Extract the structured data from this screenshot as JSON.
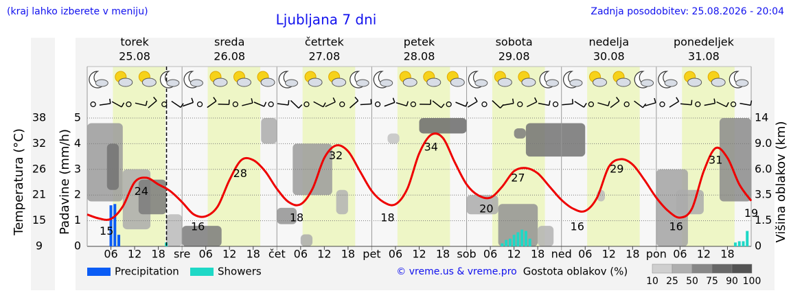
{
  "header": {
    "hint": "(kraj lahko izberete v meniju)",
    "updated": "Zadnja posodobitev: 25.08.2026 - 20:04"
  },
  "chart_data": {
    "type": "meteogram",
    "title": "Ljubljana 7 dni",
    "days": [
      {
        "name": "torek",
        "date": "25.08",
        "color": "#000000"
      },
      {
        "name": "sreda",
        "date": "26.08",
        "color": "#000000"
      },
      {
        "name": "četrtek",
        "date": "27.08",
        "color": "#000000"
      },
      {
        "name": "petek",
        "date": "28.08",
        "color": "#000000"
      },
      {
        "name": "sobota",
        "date": "29.08",
        "color": "#dd0000"
      },
      {
        "name": "nedelja",
        "date": "30.08",
        "color": "#dd0000"
      },
      {
        "name": "ponedeljek",
        "date": "31.08",
        "color": "#000000"
      }
    ],
    "xlim": [
      0,
      168
    ],
    "xticks": [
      {
        "value": 6,
        "label": "06"
      },
      12,
      18,
      {
        "value": 24,
        "label": "sre"
      },
      {
        "value": 30,
        "label": "06"
      },
      {
        "value": 36,
        "label": "12"
      },
      {
        "value": 42,
        "label": "18"
      },
      {
        "value": 48,
        "label": "čet"
      },
      {
        "value": 54,
        "label": "06"
      },
      {
        "value": 60,
        "label": "12"
      },
      {
        "value": 66,
        "label": "18"
      },
      {
        "value": 72,
        "label": "pet"
      },
      {
        "value": 78,
        "label": "06"
      },
      {
        "value": 84,
        "label": "12"
      },
      {
        "value": 90,
        "label": "18"
      },
      {
        "value": 96,
        "label": "sob"
      },
      {
        "value": 102,
        "label": "06"
      },
      {
        "value": 108,
        "label": "12"
      },
      {
        "value": 114,
        "label": "18"
      },
      {
        "value": 120,
        "label": "ned"
      },
      {
        "value": 126,
        "label": "06"
      },
      {
        "value": 132,
        "label": "12"
      },
      {
        "value": 138,
        "label": "18"
      },
      {
        "value": 144,
        "label": "pon"
      },
      {
        "value": 150,
        "label": "06"
      },
      {
        "value": 156,
        "label": "12"
      },
      {
        "value": 162,
        "label": "18"
      }
    ],
    "daylight_hours": [
      6.5,
      19.8
    ],
    "now_x": 20.07,
    "ylabel": "Padavine (mm/h)",
    "ylim": [
      0,
      5
    ],
    "yticks": [
      0,
      1,
      2,
      3,
      4,
      5
    ],
    "grid": true,
    "temperature": {
      "label": "Temperatura (°C)",
      "color": "#ee0000",
      "ylim": [
        9,
        38
      ],
      "ticks": [
        9,
        {
          "value": 14.8,
          "label": "15"
        },
        {
          "value": 20.6,
          "label": "21"
        },
        {
          "value": 26.4,
          "label": "26"
        },
        {
          "value": 32.2,
          "label": "32"
        },
        38
      ],
      "x": [
        0,
        3,
        6,
        9,
        12,
        15,
        18,
        21,
        24,
        27,
        30,
        33,
        36,
        39,
        42,
        45,
        48,
        51,
        54,
        57,
        60,
        63,
        66,
        69,
        72,
        75,
        78,
        81,
        84,
        87,
        90,
        93,
        96,
        99,
        102,
        105,
        108,
        111,
        114,
        117,
        120,
        123,
        126,
        129,
        132,
        135,
        138,
        141,
        144,
        147,
        150,
        153,
        156,
        159,
        162,
        165,
        168
      ],
      "values": [
        16.2,
        15.3,
        15.2,
        18,
        23.5,
        24.5,
        23,
        21.5,
        19,
        16.2,
        15.8,
        18,
        24,
        28.5,
        28.5,
        26,
        22,
        19,
        18.5,
        22,
        29,
        31.8,
        30.5,
        26,
        21.5,
        19,
        18.5,
        22,
        30,
        34.2,
        33.5,
        28,
        23,
        20.5,
        20,
        22.5,
        26,
        26.7,
        25.5,
        22.5,
        19.5,
        17.5,
        17,
        20,
        27,
        28.7,
        27.5,
        24,
        20,
        17,
        15.5,
        17.5,
        26,
        31.2,
        29,
        23,
        19.3
      ],
      "extremes": {
        "x": [
          4.9,
          13.7,
          28,
          38.7,
          53,
          62.9,
          76,
          87,
          101,
          109,
          124,
          134,
          149,
          159,
          168
        ],
        "values": [
          15,
          24,
          16,
          28,
          18,
          32,
          18,
          34,
          20,
          27,
          16,
          29,
          16,
          31,
          19
        ]
      }
    },
    "series": [
      {
        "name": "Precipitation",
        "color": "#0a5cf5",
        "x": [
          6,
          7,
          8
        ],
        "values": [
          1.6,
          1.65,
          0.45
        ]
      },
      {
        "name": "Showers",
        "color": "#1ed8c6",
        "x": [
          20,
          105,
          106,
          107,
          108,
          109,
          110,
          111,
          112,
          164,
          165,
          166,
          167
        ],
        "values": [
          0.15,
          0.12,
          0.25,
          0.3,
          0.45,
          0.55,
          0.65,
          0.6,
          0.3,
          0.15,
          0.2,
          0.2,
          0.6
        ]
      }
    ],
    "cloud_axis": {
      "label": "Višina oblakov (km)",
      "ticks": [
        0,
        1.5,
        3.5,
        {
          "value": 6,
          "label": "6.0"
        },
        {
          "value": 9,
          "label": "9.0"
        },
        14
      ]
    },
    "clouds": {
      "label": "Gostota oblakov (%)",
      "legend": [
        10,
        25,
        50,
        75,
        90,
        100
      ],
      "blobs": [
        {
          "x": [
            0,
            9
          ],
          "km": [
            3,
            13
          ],
          "density": 50
        },
        {
          "x": [
            5,
            8
          ],
          "km": [
            4,
            9
          ],
          "density": 75
        },
        {
          "x": [
            9,
            16
          ],
          "km": [
            1,
            6
          ],
          "density": 40
        },
        {
          "x": [
            13,
            20
          ],
          "km": [
            2,
            5
          ],
          "density": 70
        },
        {
          "x": [
            20,
            24
          ],
          "km": [
            0,
            2
          ],
          "density": 30
        },
        {
          "x": [
            24,
            34
          ],
          "km": [
            0,
            1.2
          ],
          "density": 70
        },
        {
          "x": [
            44,
            48
          ],
          "km": [
            9,
            14
          ],
          "density": 40
        },
        {
          "x": [
            48,
            53
          ],
          "km": [
            1.3,
            2.5
          ],
          "density": 55
        },
        {
          "x": [
            52,
            62
          ],
          "km": [
            3.5,
            9
          ],
          "density": 50
        },
        {
          "x": [
            54,
            57
          ],
          "km": [
            0,
            0.7
          ],
          "density": 40
        },
        {
          "x": [
            63,
            66
          ],
          "km": [
            2,
            4
          ],
          "density": 35
        },
        {
          "x": [
            76,
            79
          ],
          "km": [
            9,
            11
          ],
          "density": 25
        },
        {
          "x": [
            84,
            96
          ],
          "km": [
            11,
            14
          ],
          "density": 80
        },
        {
          "x": [
            96,
            104
          ],
          "km": [
            2,
            3.5
          ],
          "density": 40
        },
        {
          "x": [
            104,
            114
          ],
          "km": [
            0,
            2.8
          ],
          "density": 55
        },
        {
          "x": [
            108,
            111
          ],
          "km": [
            10,
            12
          ],
          "density": 70
        },
        {
          "x": [
            111,
            126
          ],
          "km": [
            7.5,
            13
          ],
          "density": 75
        },
        {
          "x": [
            114,
            118
          ],
          "km": [
            0,
            1.2
          ],
          "density": 35
        },
        {
          "x": [
            129,
            131
          ],
          "km": [
            3,
            4
          ],
          "density": 30
        },
        {
          "x": [
            144,
            152
          ],
          "km": [
            0,
            6
          ],
          "density": 45
        },
        {
          "x": [
            149,
            156
          ],
          "km": [
            2,
            4
          ],
          "density": 40
        },
        {
          "x": [
            160,
            168
          ],
          "km": [
            3,
            14
          ],
          "density": 60
        }
      ]
    },
    "credit": "© vreme.us & vreme.pro"
  }
}
